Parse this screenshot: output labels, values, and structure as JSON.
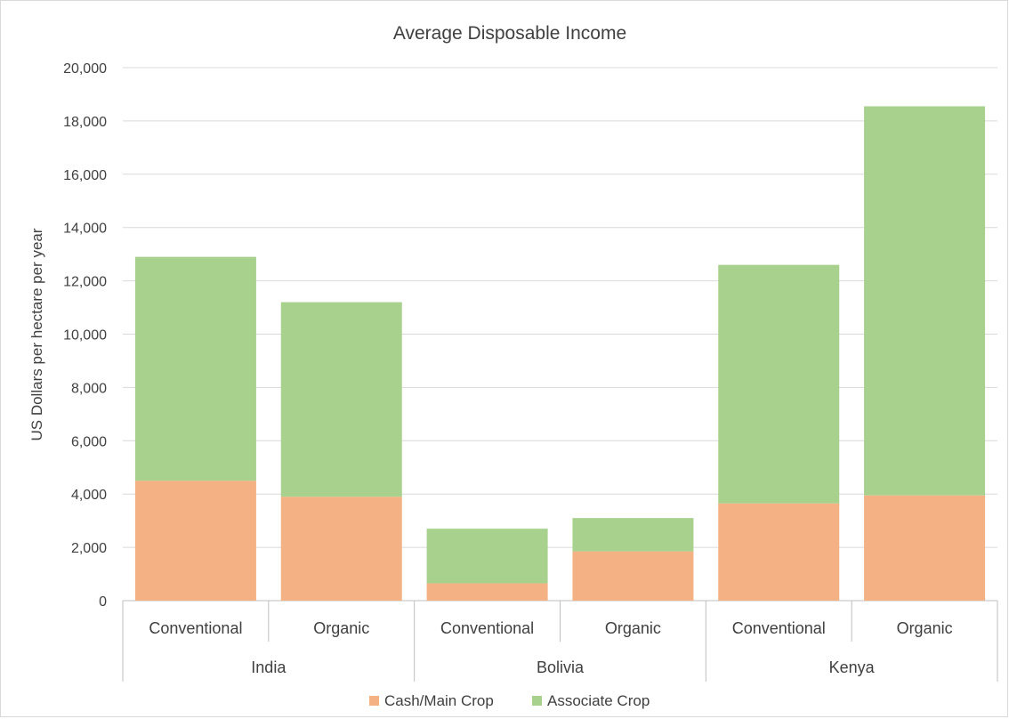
{
  "chart_data": {
    "type": "bar",
    "stacked": true,
    "title": "Average Disposable Income",
    "ylabel": "US Dollars per hectare per year",
    "xlabel": "",
    "ylim": [
      0,
      20000
    ],
    "yticks": [
      0,
      2000,
      4000,
      6000,
      8000,
      10000,
      12000,
      14000,
      16000,
      18000,
      20000
    ],
    "ytick_labels": [
      "0",
      "2,000",
      "4,000",
      "6,000",
      "8,000",
      "10,000",
      "12,000",
      "14,000",
      "16,000",
      "18,000",
      "20,000"
    ],
    "grid": true,
    "legend_position": "bottom",
    "groups": [
      {
        "label": "India",
        "categories": [
          "Conventional",
          "Organic"
        ]
      },
      {
        "label": "Bolivia",
        "categories": [
          "Conventional",
          "Organic"
        ]
      },
      {
        "label": "Kenya",
        "categories": [
          "Conventional",
          "Organic"
        ]
      }
    ],
    "series": [
      {
        "name": "Cash/Main Crop",
        "color": "#f4b183",
        "values": [
          4500,
          3900,
          650,
          1850,
          3650,
          3950
        ]
      },
      {
        "name": "Associate Crop",
        "color": "#a9d18e",
        "values": [
          8400,
          7300,
          2050,
          1250,
          8950,
          14600
        ]
      }
    ]
  }
}
